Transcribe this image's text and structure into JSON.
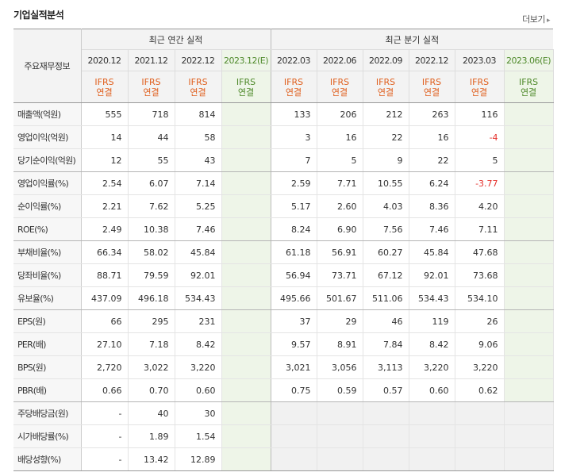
{
  "title": "기업실적분석",
  "more_label": "더보기",
  "header": {
    "label": "주요재무정보",
    "annual_group": "최근 연간 실적",
    "quarter_group": "최근 분기 실적",
    "annual_periods": [
      "2020.12",
      "2021.12",
      "2022.12",
      "2023.12(E)"
    ],
    "quarter_periods": [
      "2022.03",
      "2022.06",
      "2022.09",
      "2022.12",
      "2023.03",
      "2023.06(E)"
    ],
    "basis_top": "IFRS",
    "basis_bottom": "연결"
  },
  "colors": {
    "negative": "#e5312c",
    "estimate_bg": "#eef5e8",
    "basis": "#e0601f"
  },
  "rows": [
    {
      "label": "매출액(억원)",
      "annual": [
        "555",
        "718",
        "814",
        ""
      ],
      "quarter": [
        "133",
        "206",
        "212",
        "263",
        "116",
        ""
      ]
    },
    {
      "label": "영업이익(억원)",
      "annual": [
        "14",
        "44",
        "58",
        ""
      ],
      "quarter": [
        "3",
        "16",
        "22",
        "16",
        "-4",
        ""
      ]
    },
    {
      "label": "당기순이익(억원)",
      "annual": [
        "12",
        "55",
        "43",
        ""
      ],
      "quarter": [
        "7",
        "5",
        "9",
        "22",
        "5",
        ""
      ]
    },
    {
      "label": "영업이익률(%)",
      "annual": [
        "2.54",
        "6.07",
        "7.14",
        ""
      ],
      "quarter": [
        "2.59",
        "7.71",
        "10.55",
        "6.24",
        "-3.77",
        ""
      ]
    },
    {
      "label": "순이익률(%)",
      "annual": [
        "2.21",
        "7.62",
        "5.25",
        ""
      ],
      "quarter": [
        "5.17",
        "2.60",
        "4.03",
        "8.36",
        "4.20",
        ""
      ]
    },
    {
      "label": "ROE(%)",
      "annual": [
        "2.49",
        "10.38",
        "7.46",
        ""
      ],
      "quarter": [
        "8.24",
        "6.90",
        "7.56",
        "7.46",
        "7.11",
        ""
      ]
    },
    {
      "label": "부채비율(%)",
      "annual": [
        "66.34",
        "58.02",
        "45.84",
        ""
      ],
      "quarter": [
        "61.18",
        "56.91",
        "60.27",
        "45.84",
        "47.68",
        ""
      ]
    },
    {
      "label": "당좌비율(%)",
      "annual": [
        "88.71",
        "79.59",
        "92.01",
        ""
      ],
      "quarter": [
        "56.94",
        "73.71",
        "67.12",
        "92.01",
        "73.68",
        ""
      ]
    },
    {
      "label": "유보율(%)",
      "annual": [
        "437.09",
        "496.18",
        "534.43",
        ""
      ],
      "quarter": [
        "495.66",
        "501.67",
        "511.06",
        "534.43",
        "534.10",
        ""
      ]
    },
    {
      "label": "EPS(원)",
      "annual": [
        "66",
        "295",
        "231",
        ""
      ],
      "quarter": [
        "37",
        "29",
        "46",
        "119",
        "26",
        ""
      ]
    },
    {
      "label": "PER(배)",
      "annual": [
        "27.10",
        "7.18",
        "8.42",
        ""
      ],
      "quarter": [
        "9.57",
        "8.91",
        "7.84",
        "8.42",
        "9.06",
        ""
      ]
    },
    {
      "label": "BPS(원)",
      "annual": [
        "2,720",
        "3,022",
        "3,220",
        ""
      ],
      "quarter": [
        "3,021",
        "3,056",
        "3,113",
        "3,220",
        "3,220",
        ""
      ]
    },
    {
      "label": "PBR(배)",
      "annual": [
        "0.66",
        "0.70",
        "0.60",
        ""
      ],
      "quarter": [
        "0.75",
        "0.59",
        "0.57",
        "0.60",
        "0.62",
        ""
      ]
    },
    {
      "label": "주당배당금(원)",
      "annual": [
        "-",
        "40",
        "30",
        ""
      ],
      "quarter": null
    },
    {
      "label": "시가배당률(%)",
      "annual": [
        "-",
        "1.89",
        "1.54",
        ""
      ],
      "quarter": null
    },
    {
      "label": "배당성향(%)",
      "annual": [
        "-",
        "13.42",
        "12.89",
        ""
      ],
      "quarter": null
    }
  ]
}
